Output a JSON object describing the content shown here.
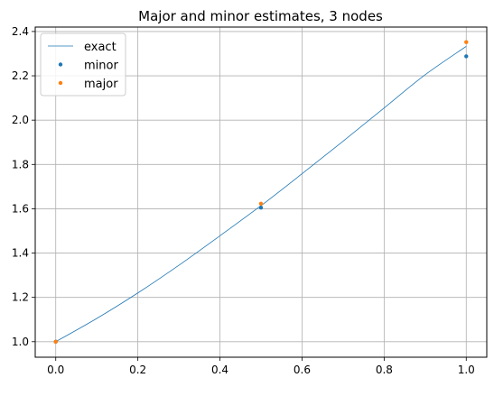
{
  "chart_data": {
    "type": "line",
    "title": "Major and minor estimates, 3 nodes",
    "xlabel": "",
    "ylabel": "",
    "xlim": [
      -0.05,
      1.05
    ],
    "ylim": [
      0.93,
      2.42
    ],
    "xticks": [
      0.0,
      0.2,
      0.4,
      0.6,
      0.8,
      1.0
    ],
    "xtick_labels": [
      "0.0",
      "0.2",
      "0.4",
      "0.6",
      "0.8",
      "1.0"
    ],
    "yticks": [
      1.0,
      1.2,
      1.4,
      1.6,
      1.8,
      2.0,
      2.2,
      2.4
    ],
    "ytick_labels": [
      "1.0",
      "1.2",
      "1.4",
      "1.6",
      "1.8",
      "2.0",
      "2.2",
      "2.4"
    ],
    "grid": true,
    "legend_position": "top-left",
    "series": [
      {
        "name": "exact",
        "kind": "line",
        "color": "#1f77b4",
        "x": [
          0.0,
          0.1,
          0.2,
          0.3,
          0.4,
          0.5,
          0.6,
          0.7,
          0.8,
          0.9,
          1.0
        ],
        "y": [
          1.0,
          1.105,
          1.22,
          1.345,
          1.478,
          1.614,
          1.758,
          1.905,
          2.055,
          2.205,
          2.333
        ]
      },
      {
        "name": "minor",
        "kind": "scatter",
        "color": "#1f77b4",
        "x": [
          0.0,
          0.5,
          1.0
        ],
        "y": [
          1.0,
          1.605,
          2.288
        ]
      },
      {
        "name": "major",
        "kind": "scatter",
        "color": "#ff7f0e",
        "x": [
          0.0,
          0.5,
          1.0
        ],
        "y": [
          1.0,
          1.623,
          2.352
        ]
      }
    ]
  }
}
